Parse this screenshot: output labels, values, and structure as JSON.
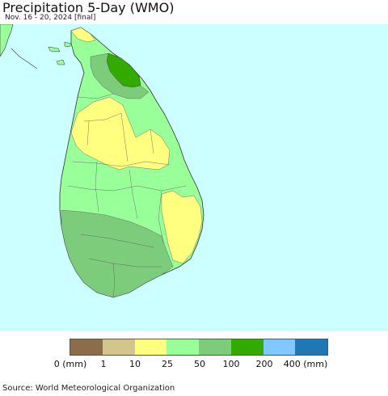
{
  "header": {
    "title": "Precipitation 5-Day (WMO)",
    "subtitle": "Nov. 16 - 20, 2024 [final]"
  },
  "map": {
    "background_color": "#ccffff",
    "region": "Sri Lanka",
    "precip_colors": {
      "0-1": "#8c6d4a",
      "1-10": "#d4c48e",
      "10-25": "#ffff80",
      "25-50": "#99ff99",
      "50-100": "#7ccc7c",
      "100-200": "#33aa00",
      "200-400": "#80c8ff",
      "400+": "#1f77b4"
    }
  },
  "legend": {
    "colors": [
      "#8c6d4a",
      "#d4c48e",
      "#ffff80",
      "#99ff99",
      "#7ccc7c",
      "#33aa00",
      "#80c8ff",
      "#1f77b4"
    ],
    "labels": [
      "0 (mm)",
      "1",
      "10",
      "25",
      "50",
      "100",
      "200",
      "400 (mm)"
    ]
  },
  "footer": {
    "source": "Source: World Meteorological Organization"
  }
}
